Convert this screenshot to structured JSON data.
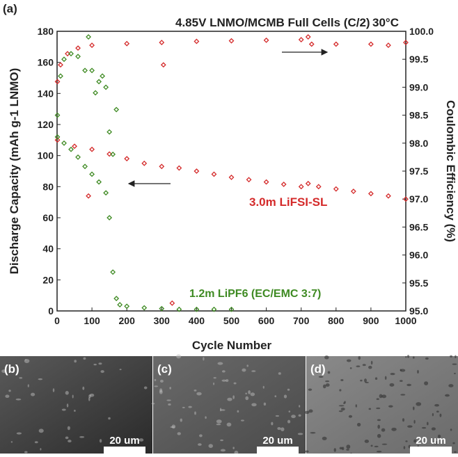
{
  "chart_data": {
    "type": "scatter",
    "panel_label": "(a)",
    "title": "4.85V LNMO/MCMB Full Cells (C/2)",
    "temperature": "30°C",
    "xlabel": "Cycle Number",
    "ylabel": "Discharge Capacity (mAh g-1 LNMO)",
    "y2label": "Coulombic Efficiency (%)",
    "xlim": [
      0,
      1000
    ],
    "xticks": [
      0,
      100,
      200,
      300,
      400,
      500,
      600,
      700,
      800,
      900,
      1000
    ],
    "ylim": [
      0,
      180
    ],
    "yticks": [
      0,
      20,
      40,
      60,
      80,
      100,
      120,
      140,
      160,
      180
    ],
    "y2lim": [
      95,
      100
    ],
    "y2ticks": [
      {
        "value": 95,
        "label": "95.0"
      },
      {
        "value": 95.5,
        "label": "95.5"
      },
      {
        "value": 96,
        "label": "96.0"
      },
      {
        "value": 96.5,
        "label": "96.5"
      },
      {
        "value": 97,
        "label": "97.0"
      },
      {
        "value": 97.5,
        "label": "97.5"
      },
      {
        "value": 98,
        "label": "98.0"
      },
      {
        "value": 98.5,
        "label": "98.5"
      },
      {
        "value": 99,
        "label": "99.0"
      },
      {
        "value": 99.5,
        "label": "99.5"
      },
      {
        "value": 100,
        "label": "100.0"
      }
    ],
    "series": [
      {
        "name": "3.0m LiFSI-SL",
        "color": "#d42a2a",
        "x": [
          1,
          50,
          90,
          100,
          150,
          200,
          250,
          300,
          330,
          350,
          400,
          450,
          500,
          550,
          600,
          650,
          700,
          720,
          750,
          800,
          850,
          900,
          950,
          1000
        ],
        "values": [
          110,
          106,
          74,
          104,
          101,
          98,
          95,
          93,
          5,
          92,
          90,
          88,
          86,
          84.5,
          83,
          81.5,
          80,
          82,
          80,
          78.5,
          77,
          75.5,
          74,
          72
        ]
      },
      {
        "name": "1.2m LiPF6 (EC/EMC 3:7)",
        "color": "#3e8a22",
        "x": [
          1,
          20,
          40,
          60,
          80,
          100,
          120,
          140,
          150,
          160,
          170,
          180,
          200,
          250,
          300,
          350,
          400,
          450,
          500
        ],
        "values": [
          112,
          108,
          104,
          99,
          93,
          88,
          83,
          76,
          60,
          25,
          8,
          4,
          3,
          2,
          1.5,
          1,
          1,
          1,
          1
        ]
      },
      {
        "color": "#d42a2a",
        "axis": "y2",
        "x": [
          1,
          10,
          30,
          60,
          100,
          200,
          300,
          305,
          400,
          500,
          600,
          700,
          720,
          730,
          800,
          900,
          950,
          1000
        ],
        "values": [
          99.1,
          99.4,
          99.6,
          99.7,
          99.75,
          99.78,
          99.8,
          99.4,
          99.82,
          99.83,
          99.84,
          99.85,
          99.9,
          99.77,
          99.77,
          99.77,
          99.75,
          99.8
        ]
      },
      {
        "color": "#3e8a22",
        "axis": "y2",
        "x": [
          1,
          10,
          20,
          40,
          60,
          80,
          90,
          100,
          110,
          120,
          130,
          140,
          150,
          160,
          170
        ],
        "values": [
          98.5,
          99.2,
          99.5,
          99.6,
          99.55,
          99.3,
          99.9,
          99.3,
          98.9,
          99.1,
          99.2,
          99.0,
          98.2,
          97.8,
          98.6
        ]
      }
    ]
  },
  "images": [
    {
      "label": "(b)",
      "scale": "20 um"
    },
    {
      "label": "(c)",
      "scale": "20 um"
    },
    {
      "label": "(d)",
      "scale": "20 um"
    }
  ]
}
